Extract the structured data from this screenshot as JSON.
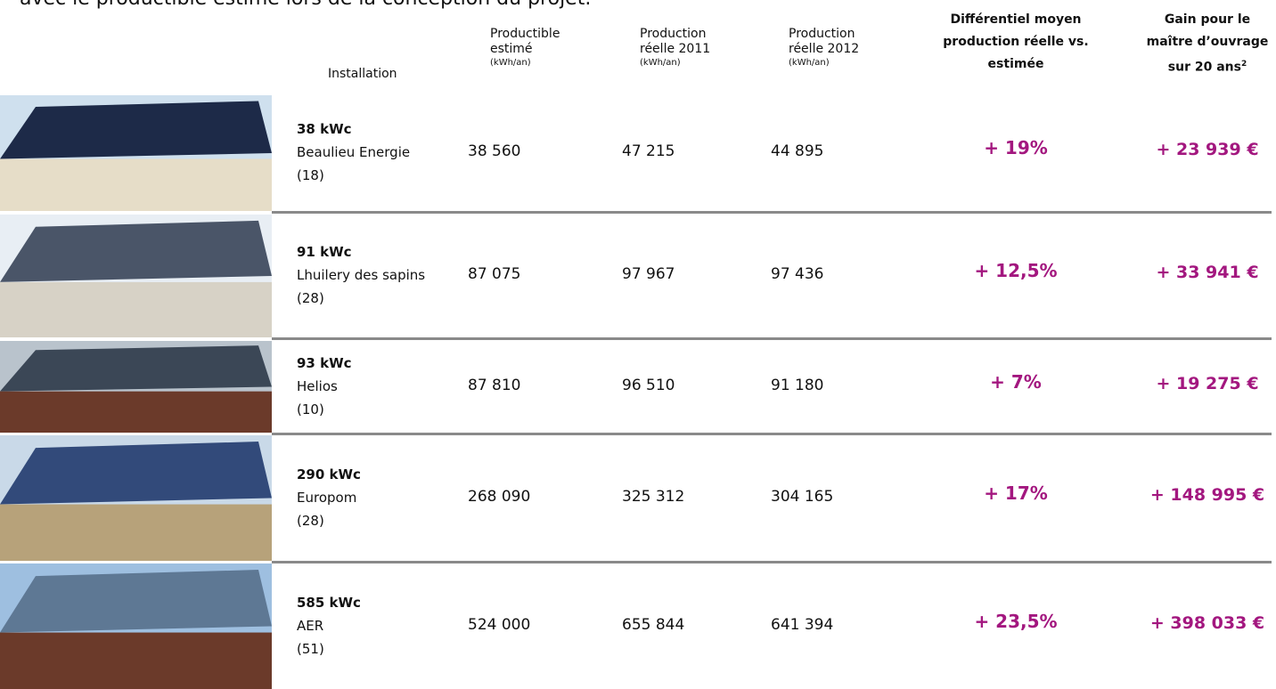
{
  "intro": "avec le productible estimé lors de la conception du projet.",
  "table": {
    "headers": [
      {
        "text": "Installation"
      },
      {
        "text": "Productible estimé",
        "unit": "(kWh/an)"
      },
      {
        "text": "Production réelle 2011",
        "unit": "(kWh/an)"
      },
      {
        "text": "Production réelle 2012",
        "unit": "(kWh/an)"
      },
      {
        "text": "Différentiel moyen production réelle vs. estimée"
      },
      {
        "text": "Gain pour le maître d’ouvrage sur 20 ans",
        "note": "2"
      }
    ],
    "rows": [
      [
        "38 kWc",
        "Beaulieu Energie",
        "(18)",
        "38 560",
        "47 215",
        "44 895",
        "+ 19%",
        "+ 23 939 €"
      ],
      [
        "91 kWc",
        "Lhuilery des sapins",
        "(28)",
        "87 075",
        "97 967",
        "97 436",
        "+ 12,5%",
        "+ 33 941 €"
      ],
      [
        "93 kWc",
        "Helios",
        "(10)",
        "87 810",
        "96 510",
        "91 180",
        "+ 7%",
        "+ 19 275 €"
      ],
      [
        "290 kWc",
        "Europom",
        "(28)",
        "268 090",
        "325 312",
        "304 165",
        "+ 17%",
        "+ 148 995 €"
      ],
      [
        "585 kWc",
        "AER",
        "(51)",
        "524 000",
        "655 844",
        "641 394",
        "+ 23,5%",
        "+ 398 033 €"
      ]
    ]
  }
}
